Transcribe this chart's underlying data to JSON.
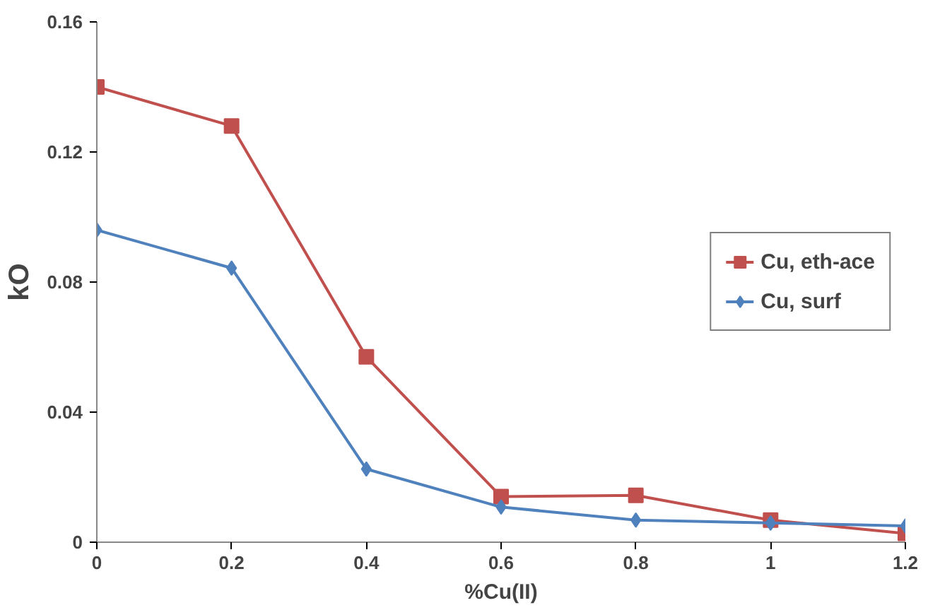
{
  "chart_data": {
    "type": "line",
    "xlabel": "%Cu(II)",
    "ylabel": "kO",
    "x": [
      0,
      0.2,
      0.4,
      0.6,
      0.8,
      1,
      1.2
    ],
    "xlim": [
      0,
      1.2
    ],
    "xticks": [
      0,
      0.2,
      0.4,
      0.6,
      0.8,
      1,
      1.2
    ],
    "ylim": [
      0,
      0.16
    ],
    "yticks": [
      0,
      0.04,
      0.08,
      0.12,
      0.16
    ],
    "grid": false,
    "legend": "right",
    "line_style": "solid",
    "series": [
      {
        "name": "Cu, eth-ace",
        "color": "#c0504d",
        "marker": "square",
        "values": [
          0.14,
          0.128,
          0.057,
          0.014,
          0.0144,
          0.0068,
          0.0027
        ]
      },
      {
        "name": "Cu, surf",
        "color": "#4f81bd",
        "marker": "diamond",
        "values": [
          0.096,
          0.0843,
          0.0225,
          0.0108,
          0.0068,
          0.0059,
          0.005
        ]
      }
    ]
  }
}
